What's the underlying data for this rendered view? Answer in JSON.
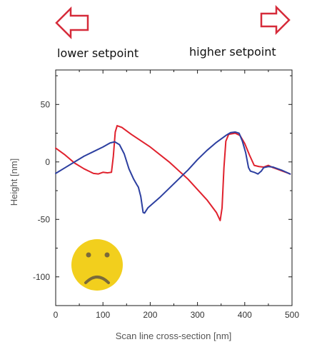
{
  "annotations": {
    "lower_setpoint": "lower setpoint",
    "higher_setpoint": "higher setpoint",
    "arrow_color": "#d62b3a",
    "face_icon": "sad-face-icon",
    "face_color": "#f2cf1d",
    "face_feature_color": "#7a6a3a"
  },
  "chart_data": {
    "type": "line",
    "xlabel": "Scan line cross-section [nm]",
    "ylabel": "Height [nm]",
    "xlim": [
      0,
      500
    ],
    "ylim": [
      -125,
      80
    ],
    "xticks": [
      0,
      100,
      200,
      300,
      400,
      500
    ],
    "yticks": [
      50,
      0,
      -50,
      -100
    ],
    "ytick_labels": [
      "50",
      "0",
      "-50",
      "-100"
    ],
    "grid": false,
    "series": [
      {
        "color": "#e0212d",
        "points": [
          [
            0,
            12
          ],
          [
            20,
            6
          ],
          [
            40,
            -1
          ],
          [
            60,
            -6
          ],
          [
            80,
            -10
          ],
          [
            90,
            -10.5
          ],
          [
            100,
            -9
          ],
          [
            110,
            -9.5
          ],
          [
            118,
            -9
          ],
          [
            122,
            5
          ],
          [
            126,
            26
          ],
          [
            130,
            31.5
          ],
          [
            140,
            30
          ],
          [
            160,
            24
          ],
          [
            200,
            13
          ],
          [
            240,
            0
          ],
          [
            280,
            -15
          ],
          [
            320,
            -33
          ],
          [
            340,
            -44
          ],
          [
            348,
            -51
          ],
          [
            352,
            -40
          ],
          [
            356,
            -5
          ],
          [
            360,
            18
          ],
          [
            366,
            24
          ],
          [
            380,
            25
          ],
          [
            390,
            23
          ],
          [
            400,
            16
          ],
          [
            410,
            6
          ],
          [
            420,
            -3
          ],
          [
            430,
            -4
          ],
          [
            440,
            -4.5
          ],
          [
            450,
            -3
          ],
          [
            460,
            -5
          ],
          [
            470,
            -6.5
          ],
          [
            480,
            -8
          ],
          [
            490,
            -9.5
          ],
          [
            496,
            -10.5
          ]
        ]
      },
      {
        "color": "#2c3fa0",
        "points": [
          [
            0,
            -10
          ],
          [
            20,
            -5
          ],
          [
            40,
            0
          ],
          [
            60,
            5
          ],
          [
            80,
            9
          ],
          [
            100,
            13
          ],
          [
            115,
            16.5
          ],
          [
            125,
            17.5
          ],
          [
            135,
            15
          ],
          [
            145,
            7
          ],
          [
            155,
            -6
          ],
          [
            165,
            -15
          ],
          [
            172,
            -20
          ],
          [
            175,
            -22
          ],
          [
            180,
            -30
          ],
          [
            185,
            -44
          ],
          [
            188,
            -44.5
          ],
          [
            195,
            -40
          ],
          [
            220,
            -31
          ],
          [
            240,
            -23
          ],
          [
            260,
            -15
          ],
          [
            280,
            -7
          ],
          [
            300,
            2
          ],
          [
            320,
            10
          ],
          [
            340,
            17
          ],
          [
            360,
            23
          ],
          [
            370,
            25.5
          ],
          [
            380,
            26
          ],
          [
            388,
            25
          ],
          [
            395,
            18
          ],
          [
            402,
            8
          ],
          [
            408,
            -5
          ],
          [
            412,
            -8
          ],
          [
            420,
            -9
          ],
          [
            428,
            -10.5
          ],
          [
            435,
            -8
          ],
          [
            440,
            -5
          ],
          [
            450,
            -4
          ],
          [
            460,
            -4.5
          ],
          [
            470,
            -6
          ],
          [
            480,
            -7.5
          ],
          [
            488,
            -9
          ],
          [
            496,
            -10.5
          ]
        ]
      }
    ]
  }
}
